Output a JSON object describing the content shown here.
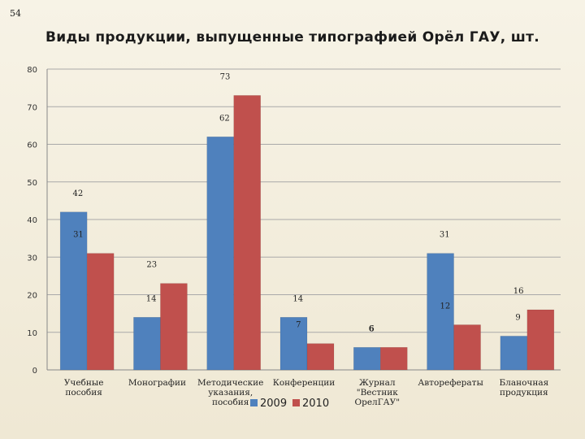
{
  "page_number": "54",
  "chart_data": {
    "type": "bar",
    "title": "Виды продукции, выпущенные типографией Орёл ГАУ, шт.",
    "categories": [
      [
        "Учебные",
        "пособия"
      ],
      [
        "Монографии"
      ],
      [
        "Методические",
        "указания,",
        "пособия"
      ],
      [
        "Конференции"
      ],
      [
        "Журнал",
        "\"Вестник",
        "ОрелГАУ\""
      ],
      [
        "Авторефераты"
      ],
      [
        "Бланочная",
        "продукция"
      ]
    ],
    "series": [
      {
        "name": "2009",
        "color": "#4f81bd",
        "values": [
          42,
          14,
          62,
          14,
          6,
          31,
          9
        ]
      },
      {
        "name": "2010",
        "color": "#c0504d",
        "values": [
          31,
          23,
          73,
          7,
          6,
          12,
          16
        ]
      }
    ],
    "ylim": [
      0,
      80
    ],
    "yticks": [
      0,
      10,
      20,
      30,
      40,
      50,
      60,
      70,
      80
    ],
    "grid": true,
    "legend": "bottom",
    "xlabel": "",
    "ylabel": ""
  }
}
